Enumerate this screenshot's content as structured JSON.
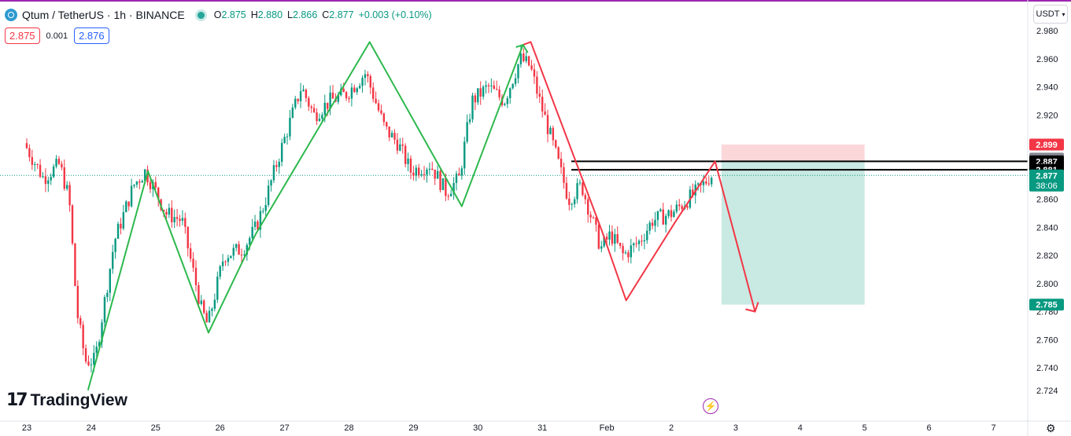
{
  "header": {
    "title": "Qtum / TetherUS · 1h · BINANCE",
    "ohlc": [
      {
        "k": "O",
        "v": "2.875"
      },
      {
        "k": "H",
        "v": "2.880"
      },
      {
        "k": "L",
        "v": "2.866"
      },
      {
        "k": "C",
        "v": "2.877"
      }
    ],
    "change": "+0.003 (+0.10%)"
  },
  "trade": {
    "sell": "2.875",
    "spread": "0.001",
    "buy": "2.876"
  },
  "currency": "USDT",
  "logo": {
    "mark": "17",
    "text": "TradingView"
  },
  "colors": {
    "up": "#089981",
    "down": "#f23645",
    "pattern_green": "#2db84d",
    "pattern_red": "#f23645",
    "label_dark": "#000000",
    "label_gray": "#868993"
  },
  "chart_data": {
    "type": "candlestick",
    "x_labels": [
      "23",
      "24",
      "25",
      "26",
      "27",
      "28",
      "29",
      "30",
      "31",
      "Feb",
      "2",
      "3",
      "4",
      "5",
      "6",
      "7"
    ],
    "y_ticks": [
      2.98,
      2.96,
      2.94,
      2.92,
      2.9,
      2.88,
      2.86,
      2.84,
      2.82,
      2.8,
      2.78,
      2.76,
      2.74,
      2.724
    ],
    "ylim": [
      2.721,
      2.99
    ],
    "x_day_range": [
      23,
      39.5
    ],
    "candle_anchors": [
      [
        23.0,
        2.9
      ],
      [
        23.3,
        2.875
      ],
      [
        23.55,
        2.885
      ],
      [
        23.7,
        2.86
      ],
      [
        23.82,
        2.78
      ],
      [
        23.95,
        2.745
      ],
      [
        24.1,
        2.745
      ],
      [
        24.4,
        2.83
      ],
      [
        24.7,
        2.87
      ],
      [
        24.88,
        2.88
      ],
      [
        25.05,
        2.865
      ],
      [
        25.2,
        2.85
      ],
      [
        25.45,
        2.845
      ],
      [
        25.75,
        2.782
      ],
      [
        25.85,
        2.77
      ],
      [
        26.1,
        2.82
      ],
      [
        26.4,
        2.825
      ],
      [
        26.6,
        2.84
      ],
      [
        26.75,
        2.86
      ],
      [
        26.95,
        2.89
      ],
      [
        27.3,
        2.94
      ],
      [
        27.5,
        2.92
      ],
      [
        27.75,
        2.93
      ],
      [
        28.0,
        2.935
      ],
      [
        28.3,
        2.95
      ],
      [
        28.6,
        2.91
      ],
      [
        28.8,
        2.9
      ],
      [
        29.0,
        2.88
      ],
      [
        29.3,
        2.885
      ],
      [
        29.55,
        2.865
      ],
      [
        29.75,
        2.875
      ],
      [
        29.95,
        2.93
      ],
      [
        30.2,
        2.94
      ],
      [
        30.45,
        2.93
      ],
      [
        30.7,
        2.96
      ],
      [
        30.85,
        2.955
      ],
      [
        31.0,
        2.93
      ],
      [
        31.2,
        2.9
      ],
      [
        31.45,
        2.86
      ],
      [
        31.65,
        2.87
      ],
      [
        31.85,
        2.84
      ],
      [
        31.95,
        2.825
      ],
      [
        32.1,
        2.835
      ],
      [
        32.3,
        2.82
      ],
      [
        32.55,
        2.83
      ],
      [
        32.75,
        2.845
      ],
      [
        33.05,
        2.85
      ],
      [
        33.3,
        2.86
      ],
      [
        33.5,
        2.868
      ],
      [
        33.65,
        2.877
      ]
    ],
    "zigzag_green": [
      [
        23.95,
        2.724
      ],
      [
        24.88,
        2.88
      ],
      [
        25.82,
        2.765
      ],
      [
        26.55,
        2.835
      ],
      [
        28.32,
        2.972
      ],
      [
        29.75,
        2.855
      ],
      [
        30.7,
        2.97
      ]
    ],
    "zigzag_red": [
      [
        30.7,
        2.97
      ],
      [
        30.82,
        2.972
      ],
      [
        31.92,
        2.838
      ],
      [
        32.3,
        2.788
      ],
      [
        33.05,
        2.843
      ],
      [
        33.68,
        2.887
      ],
      [
        34.3,
        2.78
      ]
    ],
    "position": {
      "x_start": 33.78,
      "x_end": 36.0,
      "stop": 2.899,
      "entry": 2.887,
      "target": 2.785
    },
    "levels": [
      {
        "price": 2.887,
        "x_start": 31.45
      },
      {
        "price": 2.881,
        "x_start": 31.45
      }
    ],
    "current_price": 2.877,
    "countdown": "38:06",
    "price_labels": [
      {
        "text": "2.899",
        "price": 2.899,
        "kind": "down"
      },
      {
        "text": "2.889",
        "price": 2.889,
        "kind": "gray"
      },
      {
        "text": "2.887",
        "price": 2.887,
        "kind": "dark"
      },
      {
        "text": "2.881",
        "price": 2.881,
        "kind": "dark"
      },
      {
        "text": "2.877",
        "price": 2.877,
        "kind": "up"
      },
      {
        "text": "2.785",
        "price": 2.785,
        "kind": "up"
      }
    ]
  }
}
